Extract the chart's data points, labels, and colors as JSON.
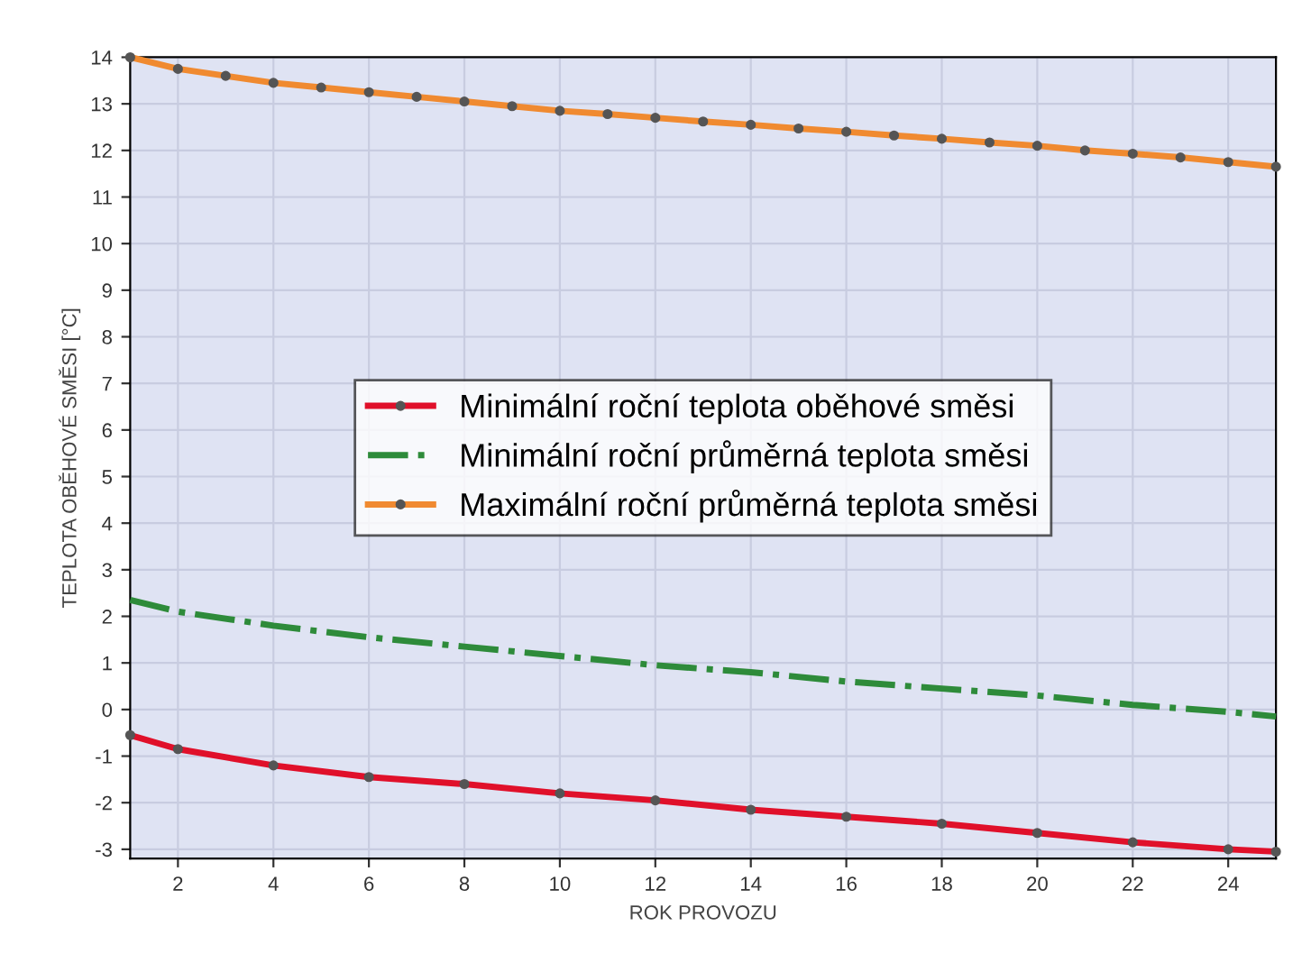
{
  "chart_data": {
    "type": "line",
    "xlabel": "ROK PROVOZU",
    "ylabel": "TEPLOTA OBĚHOVÉ SMĚSI [°C]",
    "xlim": [
      1,
      25
    ],
    "xticks": [
      2,
      4,
      6,
      8,
      10,
      12,
      14,
      16,
      18,
      20,
      22,
      24
    ],
    "ylim": [
      -3.2,
      14
    ],
    "yticks": [
      -3,
      -2,
      -1,
      0,
      1,
      2,
      3,
      4,
      5,
      6,
      7,
      8,
      9,
      10,
      11,
      12,
      13,
      14
    ],
    "grid": true,
    "legend": "center",
    "marker": "circle",
    "series": [
      {
        "name": "Minimální roční teplota oběhové směsi",
        "color": "#e0102a",
        "line_style": "solid",
        "x": [
          1,
          2,
          4,
          6,
          8,
          10,
          12,
          14,
          16,
          18,
          20,
          22,
          24,
          25
        ],
        "values": [
          -0.55,
          -0.85,
          -1.2,
          -1.45,
          -1.6,
          -1.8,
          -1.95,
          -2.15,
          -2.3,
          -2.45,
          -2.65,
          -2.85,
          -3.0,
          -3.05
        ]
      },
      {
        "name": "Minimální roční průměrná teplota směsi",
        "color": "#2e8b3a",
        "line_style": "dashed",
        "marker": "none",
        "x": [
          1,
          2,
          4,
          6,
          8,
          10,
          12,
          14,
          16,
          18,
          20,
          22,
          24,
          25
        ],
        "values": [
          2.35,
          2.1,
          1.8,
          1.55,
          1.35,
          1.15,
          0.95,
          0.8,
          0.6,
          0.45,
          0.3,
          0.1,
          -0.05,
          -0.15
        ]
      },
      {
        "name": "Maximální roční průměrná teplota směsi",
        "color": "#f08a30",
        "line_style": "solid",
        "x": [
          1,
          2,
          3,
          4,
          5,
          6,
          7,
          8,
          9,
          10,
          11,
          12,
          13,
          14,
          15,
          16,
          17,
          18,
          19,
          20,
          21,
          22,
          23,
          24,
          25
        ],
        "values": [
          14.0,
          13.75,
          13.6,
          13.45,
          13.35,
          13.25,
          13.15,
          13.05,
          12.95,
          12.85,
          12.78,
          12.7,
          12.62,
          12.55,
          12.47,
          12.4,
          12.32,
          12.25,
          12.17,
          12.1,
          12.0,
          11.93,
          11.85,
          11.75,
          11.65
        ]
      }
    ]
  }
}
